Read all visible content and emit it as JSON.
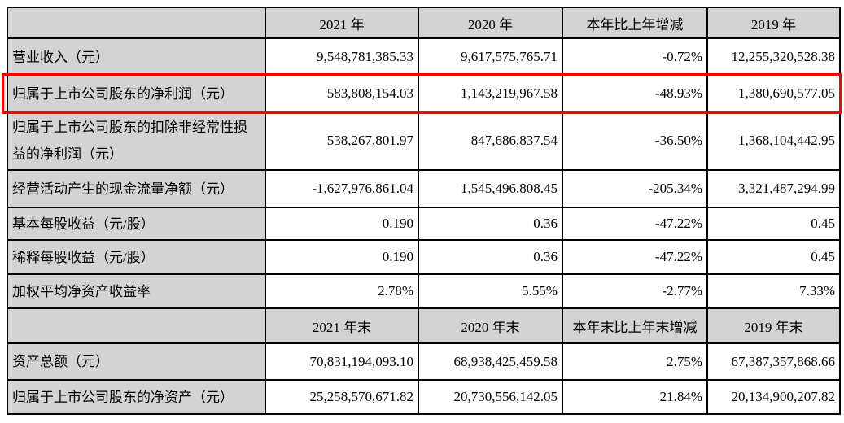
{
  "colors": {
    "header_bg": "#d3d3d3",
    "border": "#000000",
    "highlight": "#ff0000",
    "cell_bg": "#ffffff",
    "text": "#000000"
  },
  "table": {
    "header1": [
      "",
      "2021 年",
      "2020 年",
      "本年比上年增减",
      "2019 年"
    ],
    "rows1": [
      {
        "label": "营业收入（元）",
        "values": [
          "9,548,781,385.33",
          "9,617,575,765.71",
          "-0.72%",
          "12,255,320,528.38"
        ]
      },
      {
        "label": "归属于上市公司股东的净利润（元）",
        "values": [
          "583,808,154.03",
          "1,143,219,967.58",
          "-48.93%",
          "1,380,690,577.05"
        ],
        "highlighted": true
      },
      {
        "label": "归属于上市公司股东的扣除非经常性损益的净利润（元）",
        "values": [
          "538,267,801.97",
          "847,686,837.54",
          "-36.50%",
          "1,368,104,442.95"
        ]
      },
      {
        "label": "经营活动产生的现金流量净额（元）",
        "values": [
          "-1,627,976,861.04",
          "1,545,496,808.45",
          "-205.34%",
          "3,321,487,294.99"
        ]
      },
      {
        "label": "基本每股收益（元/股）",
        "values": [
          "0.190",
          "0.36",
          "-47.22%",
          "0.45"
        ]
      },
      {
        "label": "稀释每股收益（元/股）",
        "values": [
          "0.190",
          "0.36",
          "-47.22%",
          "0.45"
        ]
      },
      {
        "label": "加权平均净资产收益率",
        "values": [
          "2.78%",
          "5.55%",
          "-2.77%",
          "7.33%"
        ]
      }
    ],
    "header2": [
      "",
      "2021 年末",
      "2020 年末",
      "本年末比上年末增减",
      "2019 年末"
    ],
    "rows2": [
      {
        "label": "资产总额（元）",
        "values": [
          "70,831,194,093.10",
          "68,938,425,459.58",
          "2.75%",
          "67,387,357,868.66"
        ]
      },
      {
        "label": "归属于上市公司股东的净资产（元）",
        "values": [
          "25,258,570,671.82",
          "20,730,556,142.05",
          "21.84%",
          "20,134,900,207.82"
        ]
      }
    ]
  }
}
